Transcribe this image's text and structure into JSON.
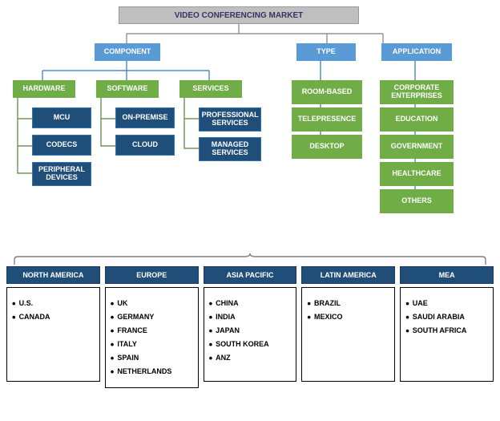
{
  "title": "VIDEO CONFERENCING MARKET",
  "colors": {
    "root_bg": "#bfbfbf",
    "root_text": "#333366",
    "blue": "#5b9bd5",
    "green": "#70ad47",
    "navy": "#1f4e79",
    "green_line": "#548235",
    "blue_line": "#2e75b6",
    "gray_line": "#7f7f7f"
  },
  "branches": {
    "component": {
      "label": "COMPONENT"
    },
    "type": {
      "label": "TYPE"
    },
    "application": {
      "label": "APPLICATION"
    }
  },
  "component_children": {
    "hardware": {
      "label": "HARDWARE",
      "items": [
        "MCU",
        "CODECS",
        "PERIPHERAL DEVICES"
      ]
    },
    "software": {
      "label": "SOFTWARE",
      "items": [
        "ON-PREMISE",
        "CLOUD"
      ]
    },
    "services": {
      "label": "SERVICES",
      "items": [
        "PROFESSIONAL SERVICES",
        "MANAGED SERVICES"
      ]
    }
  },
  "type_items": [
    "ROOM-BASED",
    "TELEPRESENCE",
    "DESKTOP"
  ],
  "application_items": [
    "CORPORATE ENTERPRISES",
    "EDUCATION",
    "GOVERNMENT",
    "HEALTHCARE",
    "OTHERS"
  ],
  "regions": [
    {
      "label": "NORTH AMERICA",
      "countries": [
        "U.S.",
        "CANADA"
      ]
    },
    {
      "label": "EUROPE",
      "countries": [
        "UK",
        "GERMANY",
        "FRANCE",
        "ITALY",
        "SPAIN",
        "NETHERLANDS"
      ]
    },
    {
      "label": "ASIA PACIFIC",
      "countries": [
        "CHINA",
        "INDIA",
        "JAPAN",
        "SOUTH KOREA",
        "ANZ"
      ]
    },
    {
      "label": "LATIN AMERICA",
      "countries": [
        "BRAZIL",
        "MEXICO"
      ]
    },
    {
      "label": "MEA",
      "countries": [
        "UAE",
        "SAUDI ARABIA",
        "SOUTH AFRICA"
      ]
    }
  ]
}
